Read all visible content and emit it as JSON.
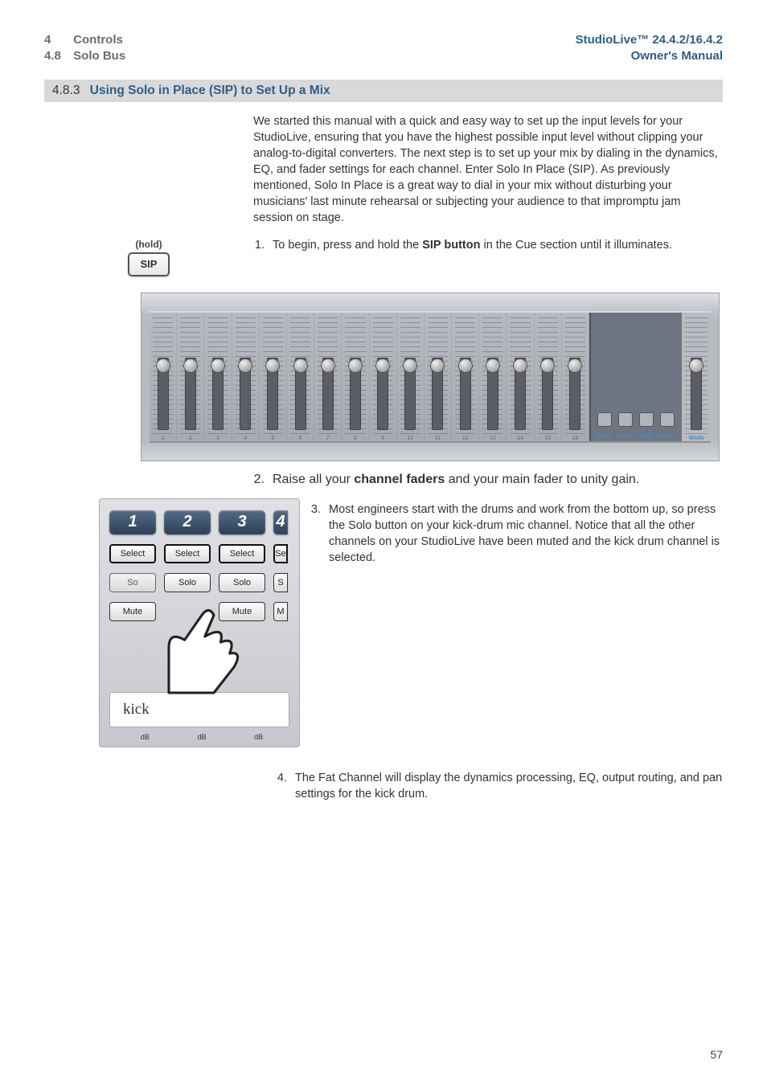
{
  "header": {
    "left": {
      "chapter_num": "4",
      "chapter_title": "Controls",
      "section_num": "4.8",
      "section_title": "Solo Bus"
    },
    "right": {
      "product": "StudioLive™ 24.4.2/16.4.2",
      "doc_type": "Owner's Manual"
    }
  },
  "section": {
    "number": "4.8.3",
    "title": "Using Solo in Place (SIP) to Set Up a Mix"
  },
  "intro": "We started this manual with a quick and easy way to set up the input levels for your StudioLive, ensuring that you have the highest possible input level without clipping your analog-to-digital converters. The next step is to set up your mix by dialing in the dynamics, EQ, and fader settings for each channel. Enter Solo In Place (SIP). As previously mentioned, Solo In Place is a great way to dial in your mix without disturbing your musicians' last minute rehearsal or subjecting your audience to that impromptu jam session on stage.",
  "steps": {
    "s1": {
      "num": "1.",
      "pre": "To begin, press and hold the ",
      "bold": "SIP button",
      "post": " in the Cue section until it illuminates."
    },
    "s2": {
      "num": "2.",
      "pre": "Raise all your ",
      "bold": "channel faders",
      "post": " and your main fader to unity gain."
    },
    "s3": {
      "num": "3.",
      "text": "Most engineers start with the drums and work from the bottom up, so press the Solo button on your kick-drum mic channel. Notice that all the other channels on your StudioLive have been muted and the kick drum channel is selected."
    },
    "s4": {
      "num": "4.",
      "text": "The Fat Channel will display the dynamics processing, EQ, output routing, and pan settings for the kick drum."
    }
  },
  "sip_illus": {
    "hold": "(hold)",
    "label": "SIP"
  },
  "mixer": {
    "channels": 16,
    "sub_labels": [
      "SUB1",
      "SUB2",
      "SUB3",
      "SUB4"
    ],
    "main_label": "MAIN"
  },
  "chan_detail": {
    "nums": [
      "1",
      "2",
      "3"
    ],
    "select": "Select",
    "solo": "Solo",
    "mute": "Mute",
    "partial_select": "Se",
    "partial_solo": "S",
    "partial_mute": "M",
    "partial_num": "4",
    "scribble": "kick",
    "db": "dB"
  },
  "page_number": "57",
  "colors": {
    "brand_blue": "#2f5e86",
    "header_gray": "#6c6c6c",
    "bar_bg": "#d9d9db"
  }
}
